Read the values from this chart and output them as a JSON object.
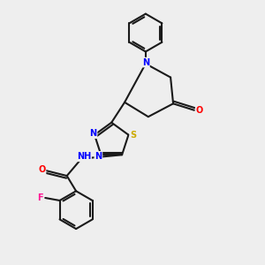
{
  "background_color": "#eeeeee",
  "bond_color": "#1a1a1a",
  "atom_colors": {
    "N": "#0000ff",
    "O": "#ff0000",
    "S": "#ccaa00",
    "F": "#ff1493",
    "C": "#1a1a1a",
    "H": "#008080"
  },
  "figsize": [
    3.0,
    3.0
  ],
  "dpi": 100
}
